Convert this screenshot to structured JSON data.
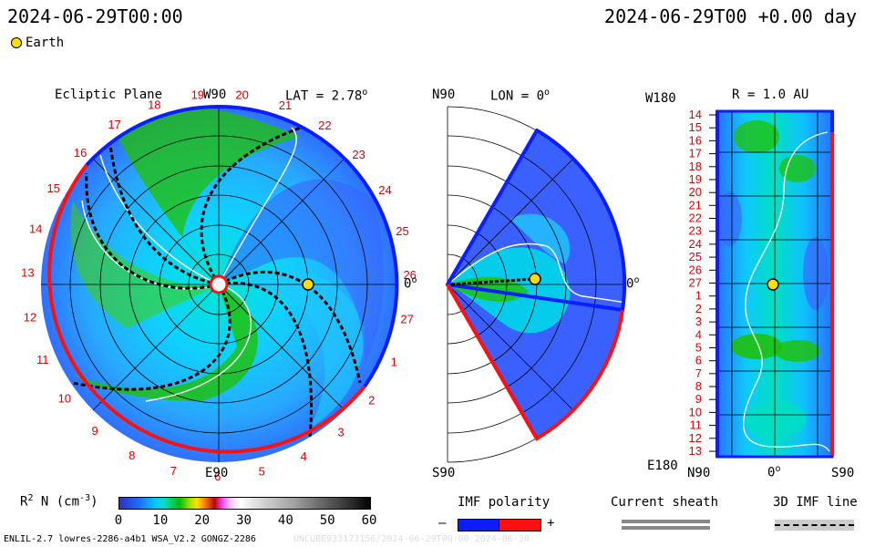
{
  "header": {
    "left_time": "2024-06-29T00:00",
    "right_time": "2024-06-29T00 +0.00 day"
  },
  "legend": {
    "earth_label": "Earth"
  },
  "ecliptic": {
    "title": "Ecliptic Plane",
    "lat_label": "LAT = 2.78",
    "lat_deg": "o",
    "top_label": "W90",
    "bottom_label": "E90",
    "right_label": "0",
    "right_deg": "o",
    "rotation_numbers": [
      "20",
      "21",
      "22",
      "23",
      "24",
      "25",
      "26",
      "27",
      "1",
      "2",
      "3",
      "4",
      "5",
      "6",
      "7",
      "8",
      "9",
      "10",
      "11",
      "12",
      "13",
      "14",
      "15",
      "16",
      "17",
      "18",
      "19"
    ]
  },
  "meridional": {
    "top_label": "N90",
    "lon_label": "LON = 0",
    "lon_deg": "o",
    "bottom_label": "S90",
    "right_label": "0",
    "right_deg": "o"
  },
  "synoptic": {
    "top_label": "W180",
    "r_label": "R = 1.0 AU",
    "bottom_label": "E180",
    "x_labels": [
      "N90",
      "0",
      "S90"
    ],
    "x_deg": "o",
    "y_labels": [
      "14",
      "15",
      "16",
      "17",
      "18",
      "19",
      "20",
      "21",
      "22",
      "23",
      "24",
      "25",
      "26",
      "27",
      "1",
      "2",
      "3",
      "4",
      "5",
      "6",
      "7",
      "8",
      "9",
      "10",
      "11",
      "12",
      "13"
    ]
  },
  "colorbar": {
    "label": "R",
    "label_sup": "2",
    "label_rest": " N (cm",
    "label_exp": "-3",
    "label_close": ")",
    "ticks": [
      "0",
      "10",
      "20",
      "30",
      "40",
      "50",
      "60"
    ],
    "range": [
      0,
      60
    ]
  },
  "imf_polarity": {
    "title": "IMF polarity",
    "minus": "–",
    "plus": "+"
  },
  "current_sheath": {
    "title": "Current sheath"
  },
  "imf_line": {
    "title": "3D IMF line"
  },
  "footer": {
    "left": "ENLIL-2.7 lowres-2286-a4b1 WSA_V2.2 GONGZ-2286",
    "right": "UNCUBE933173156/2024-06-29T00:00 2024-06-30"
  },
  "colors": {
    "positive_polarity": "#ff1010",
    "negative_polarity": "#0a1eff",
    "earth": "#ffe000",
    "label_red": "#e00000"
  },
  "chart_data": [
    {
      "type": "heatmap",
      "title": "Ecliptic Plane",
      "subtitle": "LAT = 2.78°",
      "quantity": "R² N (cm⁻³)",
      "value_range": [
        0,
        60
      ],
      "earth": {
        "longitude_deg": 0,
        "r_au": 1.0
      },
      "angular_labels": [
        "W90",
        "E90",
        "0°"
      ],
      "rotation_numbers": [
        20,
        21,
        22,
        23,
        24,
        25,
        26,
        27,
        1,
        2,
        3,
        4,
        5,
        6,
        7,
        8,
        9,
        10,
        11,
        12,
        13,
        14,
        15,
        16,
        17,
        18,
        19
      ]
    },
    {
      "type": "heatmap",
      "title": "LON = 0°",
      "quantity": "R² N (cm⁻³)",
      "value_range": [
        0,
        60
      ],
      "angular_labels": [
        "N90",
        "S90",
        "0°"
      ],
      "earth": {
        "latitude_deg": 0,
        "r_au": 1.0
      }
    },
    {
      "type": "heatmap",
      "title": "R = 1.0 AU",
      "quantity": "R² N (cm⁻³)",
      "value_range": [
        0,
        60
      ],
      "x_ticks": [
        "N90",
        "0°",
        "S90"
      ],
      "y_ticks": [
        14,
        15,
        16,
        17,
        18,
        19,
        20,
        21,
        22,
        23,
        24,
        25,
        26,
        27,
        1,
        2,
        3,
        4,
        5,
        6,
        7,
        8,
        9,
        10,
        11,
        12,
        13
      ],
      "y_range_labels": [
        "W180",
        "E180"
      ],
      "earth": {
        "latitude_deg": 0,
        "rotation_label": 27
      }
    }
  ]
}
